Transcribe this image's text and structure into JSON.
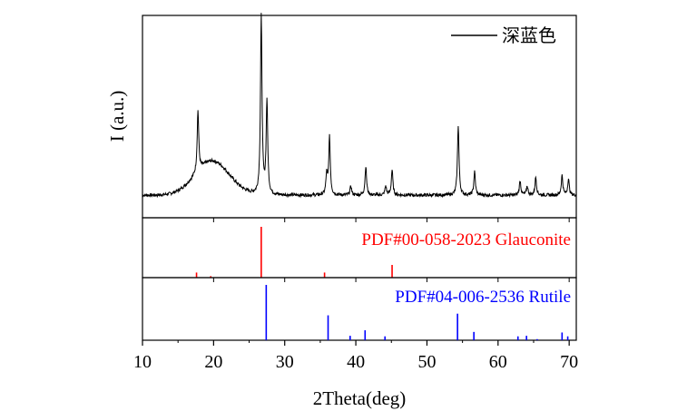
{
  "chart_data": {
    "type": "line",
    "xlabel": "2Theta(deg)",
    "ylabel": "I (a.u.)",
    "xlim": [
      10,
      71
    ],
    "xticks": [
      10,
      20,
      30,
      40,
      50,
      60,
      70
    ],
    "xtick_labels": [
      "10",
      "20",
      "30",
      "40",
      "50",
      "60",
      "70"
    ],
    "colors": {
      "axes": "#000000",
      "pattern": "#000000",
      "glauconite": "#ff0000",
      "rutile": "#0000ff"
    },
    "series": [
      {
        "name": "深蓝色",
        "legend_label": "深蓝色",
        "baseline": 0.07,
        "hump": {
          "center": 19.8,
          "width": 3.4,
          "height": 0.19
        },
        "peaks": [
          {
            "x": 17.8,
            "h": 0.34
          },
          {
            "x": 26.7,
            "h": 0.99
          },
          {
            "x": 27.5,
            "h": 0.52
          },
          {
            "x": 35.9,
            "h": 0.11
          },
          {
            "x": 36.3,
            "h": 0.32
          },
          {
            "x": 39.3,
            "h": 0.05
          },
          {
            "x": 41.4,
            "h": 0.16
          },
          {
            "x": 44.2,
            "h": 0.05
          },
          {
            "x": 45.1,
            "h": 0.14
          },
          {
            "x": 54.4,
            "h": 0.39
          },
          {
            "x": 56.7,
            "h": 0.13
          },
          {
            "x": 63.1,
            "h": 0.08
          },
          {
            "x": 64.1,
            "h": 0.05
          },
          {
            "x": 65.3,
            "h": 0.1
          },
          {
            "x": 69.0,
            "h": 0.11
          },
          {
            "x": 69.9,
            "h": 0.09
          }
        ]
      }
    ],
    "reference_patterns": [
      {
        "name": "PDF#00-058-2023 Glauconite",
        "label": "PDF#00-058-2023 Glauconite",
        "color": "#ff0000",
        "lines": [
          {
            "x": 17.6,
            "intensity": 0.1
          },
          {
            "x": 19.6,
            "intensity": 0.03
          },
          {
            "x": 26.7,
            "intensity": 1.0
          },
          {
            "x": 35.6,
            "intensity": 0.1
          },
          {
            "x": 45.1,
            "intensity": 0.25
          }
        ]
      },
      {
        "name": "PDF#04-006-2536 Rutile",
        "label": "PDF#04-006-2536 Rutile",
        "color": "#0000ff",
        "lines": [
          {
            "x": 27.4,
            "intensity": 1.0
          },
          {
            "x": 36.1,
            "intensity": 0.45
          },
          {
            "x": 39.2,
            "intensity": 0.08
          },
          {
            "x": 41.3,
            "intensity": 0.18
          },
          {
            "x": 44.1,
            "intensity": 0.07
          },
          {
            "x": 54.3,
            "intensity": 0.48
          },
          {
            "x": 56.6,
            "intensity": 0.15
          },
          {
            "x": 62.8,
            "intensity": 0.07
          },
          {
            "x": 64.0,
            "intensity": 0.08
          },
          {
            "x": 65.5,
            "intensity": 0.02
          },
          {
            "x": 69.0,
            "intensity": 0.14
          },
          {
            "x": 69.8,
            "intensity": 0.07
          }
        ]
      }
    ]
  }
}
